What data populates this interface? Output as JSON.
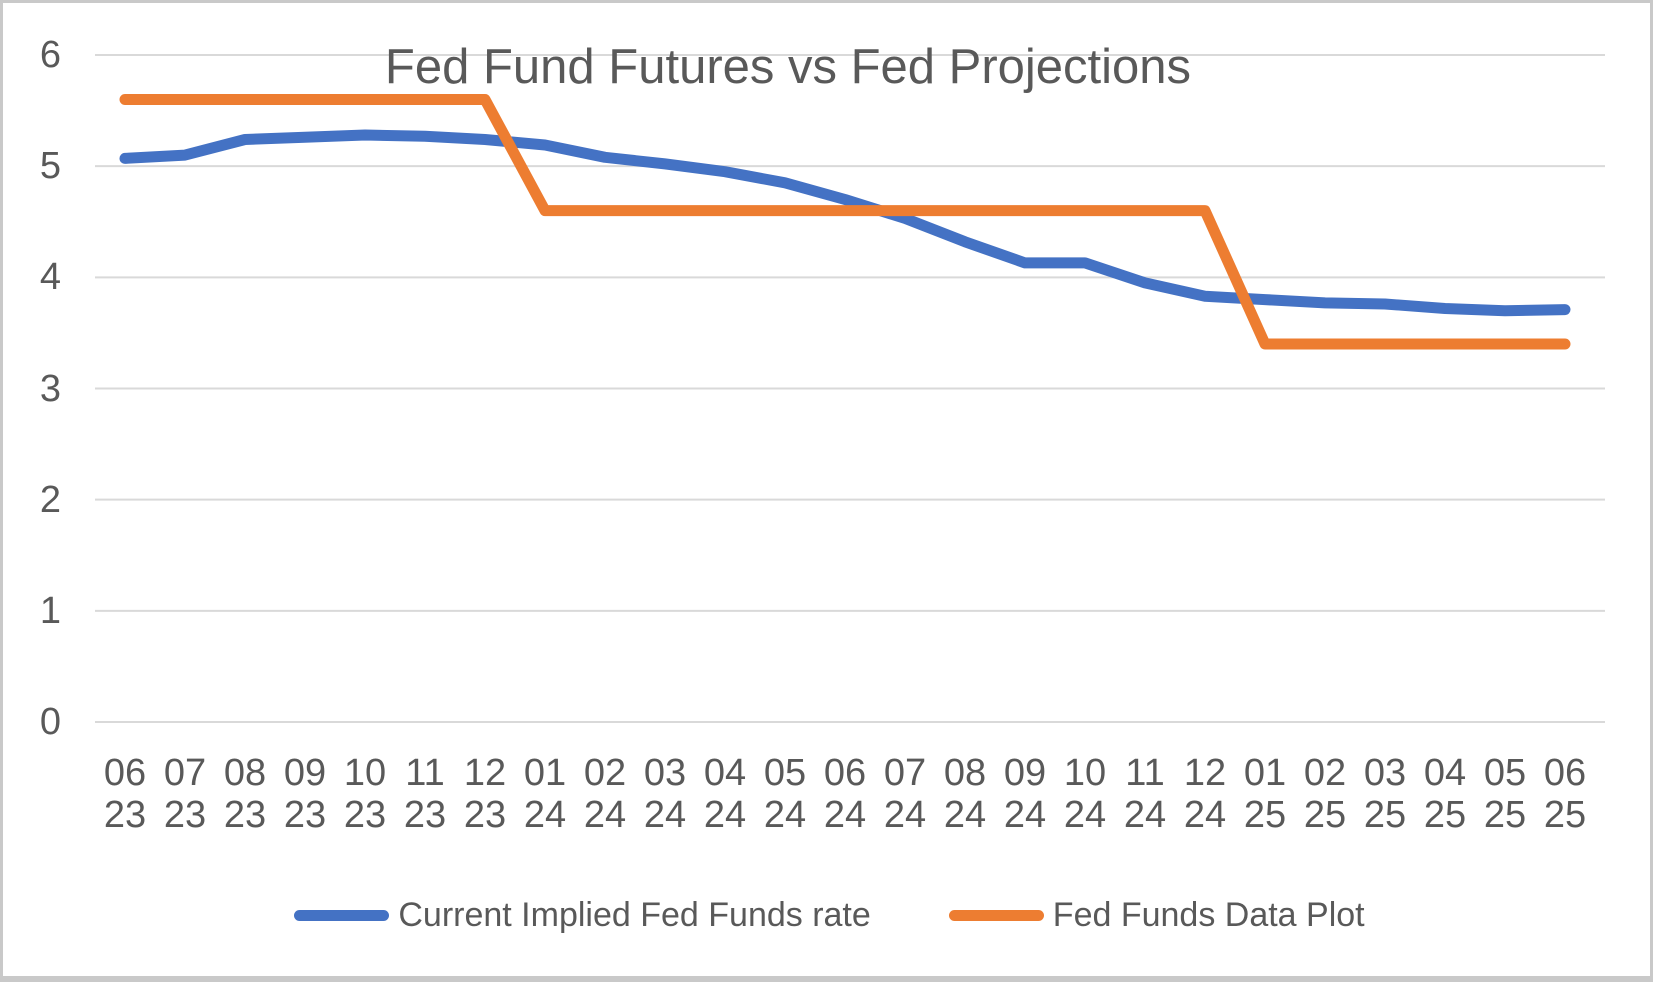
{
  "page": {
    "background": "#ffffff",
    "border_color": "#c9c9c9",
    "text_color": "#595959",
    "gridline_color": "#d9d9d9"
  },
  "chart_data": {
    "type": "line",
    "title": "Fed Fund Futures vs Fed Projections",
    "categories": [
      "06/23",
      "07/23",
      "08/23",
      "09/23",
      "10/23",
      "11/23",
      "12/23",
      "01/24",
      "02/24",
      "03/24",
      "04/24",
      "05/24",
      "06/24",
      "07/24",
      "08/24",
      "09/24",
      "10/24",
      "11/24",
      "12/24",
      "01/25",
      "02/25",
      "03/25",
      "04/25",
      "05/25",
      "06/25"
    ],
    "x_tick_label_line1": [
      "06",
      "07",
      "08",
      "09",
      "10",
      "11",
      "12",
      "01",
      "02",
      "03",
      "04",
      "05",
      "06",
      "07",
      "08",
      "09",
      "10",
      "11",
      "12",
      "01",
      "02",
      "03",
      "04",
      "05",
      "06"
    ],
    "x_tick_label_line2": [
      "23",
      "23",
      "23",
      "23",
      "23",
      "23",
      "23",
      "24",
      "24",
      "24",
      "24",
      "24",
      "24",
      "24",
      "24",
      "24",
      "24",
      "24",
      "24",
      "25",
      "25",
      "25",
      "25",
      "25",
      "25"
    ],
    "series": [
      {
        "name": "Current Implied Fed Funds rate",
        "color": "#4472C4",
        "values": [
          5.07,
          5.1,
          5.24,
          5.26,
          5.28,
          5.27,
          5.24,
          5.19,
          5.08,
          5.02,
          4.95,
          4.85,
          4.7,
          4.53,
          4.32,
          4.13,
          4.13,
          3.95,
          3.83,
          3.8,
          3.77,
          3.76,
          3.72,
          3.7,
          3.71
        ]
      },
      {
        "name": "Fed Funds Data Plot",
        "color": "#ED7D31",
        "values": [
          5.6,
          5.6,
          5.6,
          5.6,
          5.6,
          5.6,
          5.6,
          4.6,
          4.6,
          4.6,
          4.6,
          4.6,
          4.6,
          4.6,
          4.6,
          4.6,
          4.6,
          4.6,
          4.6,
          3.4,
          3.4,
          3.4,
          3.4,
          3.4,
          3.4
        ]
      }
    ],
    "xlabel": "",
    "ylabel": "",
    "ylim": [
      0,
      6
    ],
    "yticks": [
      0,
      1,
      2,
      3,
      4,
      5,
      6
    ],
    "grid": true,
    "legend_position": "bottom",
    "line_width": 11
  }
}
